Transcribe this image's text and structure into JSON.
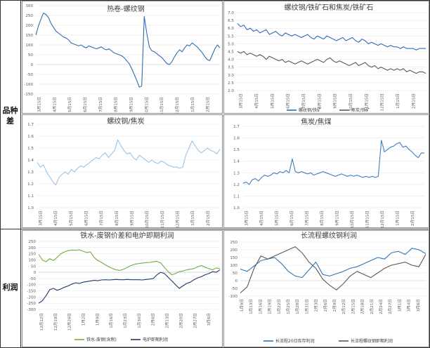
{
  "sections": {
    "variety_spread": "品种差",
    "profit": "利润"
  },
  "chart_data": [
    {
      "type": "line",
      "title": "热卷-螺纹钢",
      "ylim": [
        -150,
        300
      ],
      "grid": true,
      "y_ticks": [
        "300",
        "250",
        "200",
        "150",
        "100",
        "50",
        "0",
        "-50",
        "-100",
        "-150"
      ],
      "x_ticks": [
        "3月15日",
        "4月15日",
        "5月15日",
        "6月15日",
        "7月15日",
        "8月15日",
        "9月15日",
        "10月15日",
        "11月15日",
        "12月15日",
        "1月15日",
        "2月15日"
      ],
      "series": [
        {
          "color": "#2f6db5",
          "values": [
            150,
            195,
            230,
            262,
            255,
            240,
            210,
            190,
            170,
            160,
            150,
            140,
            135,
            125,
            110,
            105,
            100,
            95,
            100,
            90,
            85,
            95,
            90,
            85,
            80,
            85,
            90,
            80,
            75,
            80,
            70,
            60,
            55,
            50,
            45,
            35,
            20,
            5,
            -20,
            -50,
            -80,
            -115,
            -110,
            245,
            160,
            90,
            70,
            65,
            55,
            45,
            35,
            20,
            5,
            0,
            15,
            40,
            60,
            75,
            65,
            85,
            100,
            95,
            110,
            100,
            90,
            75,
            60,
            40,
            25,
            20,
            50,
            80,
            100,
            85
          ]
        }
      ]
    },
    {
      "type": "line",
      "title": "螺纹钢/铁矿石和焦炭/铁矿石",
      "ylim": [
        2.0,
        7.0
      ],
      "grid": true,
      "legend": "bottom",
      "y_ticks": [
        "7.0",
        "6.5",
        "6.0",
        "5.5",
        "5.0",
        "4.5",
        "4.0",
        "3.5",
        "3.0",
        "2.5",
        "2.0"
      ],
      "x_ticks": [
        "3月15日",
        "4月15日",
        "5月15日",
        "6月15日",
        "7月15日",
        "8月15日",
        "9月15日",
        "10月15日",
        "11月15日",
        "12月15日",
        "1月15日",
        "2月15日"
      ],
      "series": [
        {
          "name": "螺纹钢/铁矿",
          "color": "#2f6db5",
          "values": [
            6.3,
            6.1,
            6.2,
            5.9,
            6.0,
            5.8,
            5.9,
            5.7,
            5.8,
            5.9,
            5.6,
            5.7,
            5.8,
            5.6,
            5.5,
            5.7,
            5.6,
            5.5,
            5.6,
            5.5,
            5.4,
            5.5,
            5.6,
            5.4,
            5.3,
            5.5,
            5.4,
            5.3,
            5.5,
            5.4,
            5.3,
            5.2,
            5.3,
            5.4,
            5.2,
            5.3,
            5.4,
            5.2,
            5.1,
            5.3,
            5.2,
            5.0,
            5.1,
            5.0,
            4.9,
            5.0,
            4.9,
            4.8,
            4.9,
            4.8,
            4.8,
            4.7,
            4.8,
            4.7,
            4.7,
            4.7,
            4.6,
            4.7,
            4.7,
            4.7
          ]
        },
        {
          "name": "焦炭/铁矿",
          "color": "#595959",
          "values": [
            4.5,
            4.4,
            4.5,
            4.3,
            4.4,
            4.3,
            4.2,
            4.3,
            4.2,
            4.0,
            4.2,
            4.1,
            4.0,
            3.9,
            4.0,
            3.8,
            3.9,
            3.8,
            3.7,
            3.8,
            3.9,
            3.8,
            3.7,
            3.8,
            3.9,
            4.0,
            3.9,
            3.8,
            4.0,
            4.1,
            3.9,
            3.8,
            3.9,
            3.8,
            3.7,
            3.6,
            3.7,
            3.8,
            3.6,
            3.7,
            3.8,
            3.6,
            3.5,
            3.6,
            3.4,
            3.5,
            3.4,
            3.3,
            3.4,
            3.3,
            3.4,
            3.3,
            3.4,
            3.2,
            3.3,
            3.2,
            3.1,
            3.2,
            3.2,
            3.1
          ]
        }
      ]
    },
    {
      "type": "line",
      "title": "螺纹钢/焦炭",
      "ylim": [
        1.0,
        1.7
      ],
      "grid": true,
      "y_ticks": [
        "1.7",
        "1.6",
        "1.5",
        "1.4",
        "1.3",
        "1.2",
        "1.1",
        "1.0"
      ],
      "x_ticks": [
        "3月15日",
        "4月15日",
        "5月15日",
        "6月15日",
        "7月15日",
        "8月15日",
        "9月15日",
        "10月15日",
        "11月15日",
        "12月15日",
        "1月15日",
        "2月15日"
      ],
      "series": [
        {
          "color": "#9dc3e6",
          "values": [
            1.38,
            1.34,
            1.36,
            1.3,
            1.26,
            1.22,
            1.19,
            1.25,
            1.28,
            1.3,
            1.28,
            1.32,
            1.3,
            1.33,
            1.35,
            1.34,
            1.36,
            1.38,
            1.4,
            1.42,
            1.41,
            1.44,
            1.46,
            1.42,
            1.45,
            1.48,
            1.57,
            1.52,
            1.48,
            1.45,
            1.46,
            1.42,
            1.4,
            1.44,
            1.42,
            1.4,
            1.38,
            1.4,
            1.38,
            1.37,
            1.39,
            1.38,
            1.36,
            1.35,
            1.34,
            1.34,
            1.33,
            1.34,
            1.44,
            1.5,
            1.56,
            1.52,
            1.48,
            1.46,
            1.48,
            1.5,
            1.48,
            1.47,
            1.45,
            1.49
          ]
        }
      ]
    },
    {
      "type": "line",
      "title": "焦炭/焦煤",
      "ylim": [
        1.0,
        1.7
      ],
      "grid": true,
      "y_ticks": [
        "1.7",
        "1.6",
        "1.5",
        "1.4",
        "1.3",
        "1.2",
        "1.1",
        "1.0"
      ],
      "x_ticks": [
        "3月15日",
        "4月15日",
        "5月15日",
        "6月15日",
        "7月15日",
        "8月15日",
        "9月15日",
        "10月15日",
        "11月15日",
        "12月15日",
        "1月15日",
        "2月15日"
      ],
      "series": [
        {
          "color": "#3b7fc6",
          "values": [
            1.21,
            1.22,
            1.2,
            1.24,
            1.25,
            1.23,
            1.26,
            1.28,
            1.27,
            1.28,
            1.3,
            1.29,
            1.31,
            1.3,
            1.32,
            1.3,
            1.42,
            1.31,
            1.3,
            1.31,
            1.3,
            1.29,
            1.3,
            1.28,
            1.29,
            1.3,
            1.31,
            1.3,
            1.29,
            1.28,
            1.27,
            1.28,
            1.29,
            1.28,
            1.27,
            1.28,
            1.27,
            1.28,
            1.27,
            1.26,
            1.27,
            1.26,
            1.27,
            1.26,
            1.27,
            1.58,
            1.48,
            1.5,
            1.52,
            1.53,
            1.55,
            1.56,
            1.52,
            1.53,
            1.5,
            1.48,
            1.45,
            1.43,
            1.47,
            1.47
          ]
        }
      ]
    },
    {
      "type": "line",
      "title": "铁水-废钢价差和电炉即期利润",
      "ylim": [
        -300,
        250
      ],
      "grid": true,
      "legend": "bottom",
      "y_ticks": [
        "250",
        "200",
        "150",
        "100",
        "50",
        "0",
        "-50",
        "-100",
        "-150",
        "-200",
        "-250",
        "-300"
      ],
      "x_ticks": [
        "12月12日",
        "12月19日",
        "12月26日",
        "1月2日",
        "1月9日",
        "1月16日",
        "1月23日",
        "1月30日",
        "2月6日",
        "2月13日",
        "2月20日",
        "2月27日",
        "3月6日"
      ],
      "series": [
        {
          "name": "铁水-废钢(含税)",
          "color": "#70ad47",
          "values": [
            145,
            100,
            85,
            110,
            95,
            120,
            150,
            165,
            175,
            180,
            178,
            182,
            170,
            160,
            165,
            120,
            95,
            80,
            60,
            45,
            30,
            20,
            15,
            25,
            40,
            55,
            65,
            70,
            75,
            78,
            80,
            85,
            88,
            75,
            40,
            5,
            -20,
            -10,
            5,
            10,
            20,
            25,
            30,
            45,
            55,
            40,
            30,
            20,
            35,
            30
          ]
        },
        {
          "name": "电炉即期利润",
          "color": "#1f3a68",
          "values": [
            -250,
            -230,
            -190,
            -140,
            -130,
            -145,
            -135,
            -120,
            -110,
            -95,
            -85,
            -90,
            -80,
            -75,
            -70,
            -65,
            -68,
            -62,
            -60,
            -62,
            -60,
            -58,
            -60,
            -60,
            -58,
            -60,
            -60,
            -60,
            -62,
            -58,
            -55,
            -50,
            -20,
            0,
            -10,
            -40,
            -70,
            -100,
            -130,
            -110,
            -90,
            -80,
            -60,
            -45,
            -35,
            -20,
            -10,
            5,
            0,
            20
          ]
        }
      ]
    },
    {
      "type": "line",
      "title": "长流程螺纹钢利润",
      "ylim": [
        -100,
        250
      ],
      "grid": true,
      "legend": "bottom",
      "y_ticks": [
        "250",
        "200",
        "150",
        "100",
        "50",
        "0",
        "-50",
        "-100"
      ],
      "x_ticks": [
        "1月9日",
        "1月13日",
        "1月16日",
        "1月19日",
        "1月22日",
        "1月25日",
        "1月28日",
        "1月31日",
        "2月3日",
        "2月6日",
        "2月9日",
        "2月12日",
        "2月15日",
        "2月18日",
        "2月21日",
        "2月24日",
        "2月27日",
        "3月1日",
        "3月4日",
        "3月6日"
      ],
      "series": [
        {
          "name": "长流程20日库存利润",
          "color": "#2e75b6",
          "values": [
            75,
            60,
            95,
            130,
            140,
            150,
            110,
            60,
            30,
            20,
            70,
            120,
            40,
            30,
            45,
            60,
            80,
            90,
            110,
            130,
            150,
            140,
            180,
            190,
            170,
            210,
            200,
            175
          ]
        },
        {
          "name": "长流程螺纹钢即期利润",
          "color": "#595959",
          "values": [
            -80,
            -40,
            80,
            160,
            140,
            160,
            180,
            200,
            220,
            180,
            120,
            80,
            10,
            -30,
            -60,
            -20,
            30,
            60,
            40,
            20,
            50,
            80,
            100,
            110,
            120,
            100,
            90,
            170
          ]
        }
      ]
    }
  ]
}
